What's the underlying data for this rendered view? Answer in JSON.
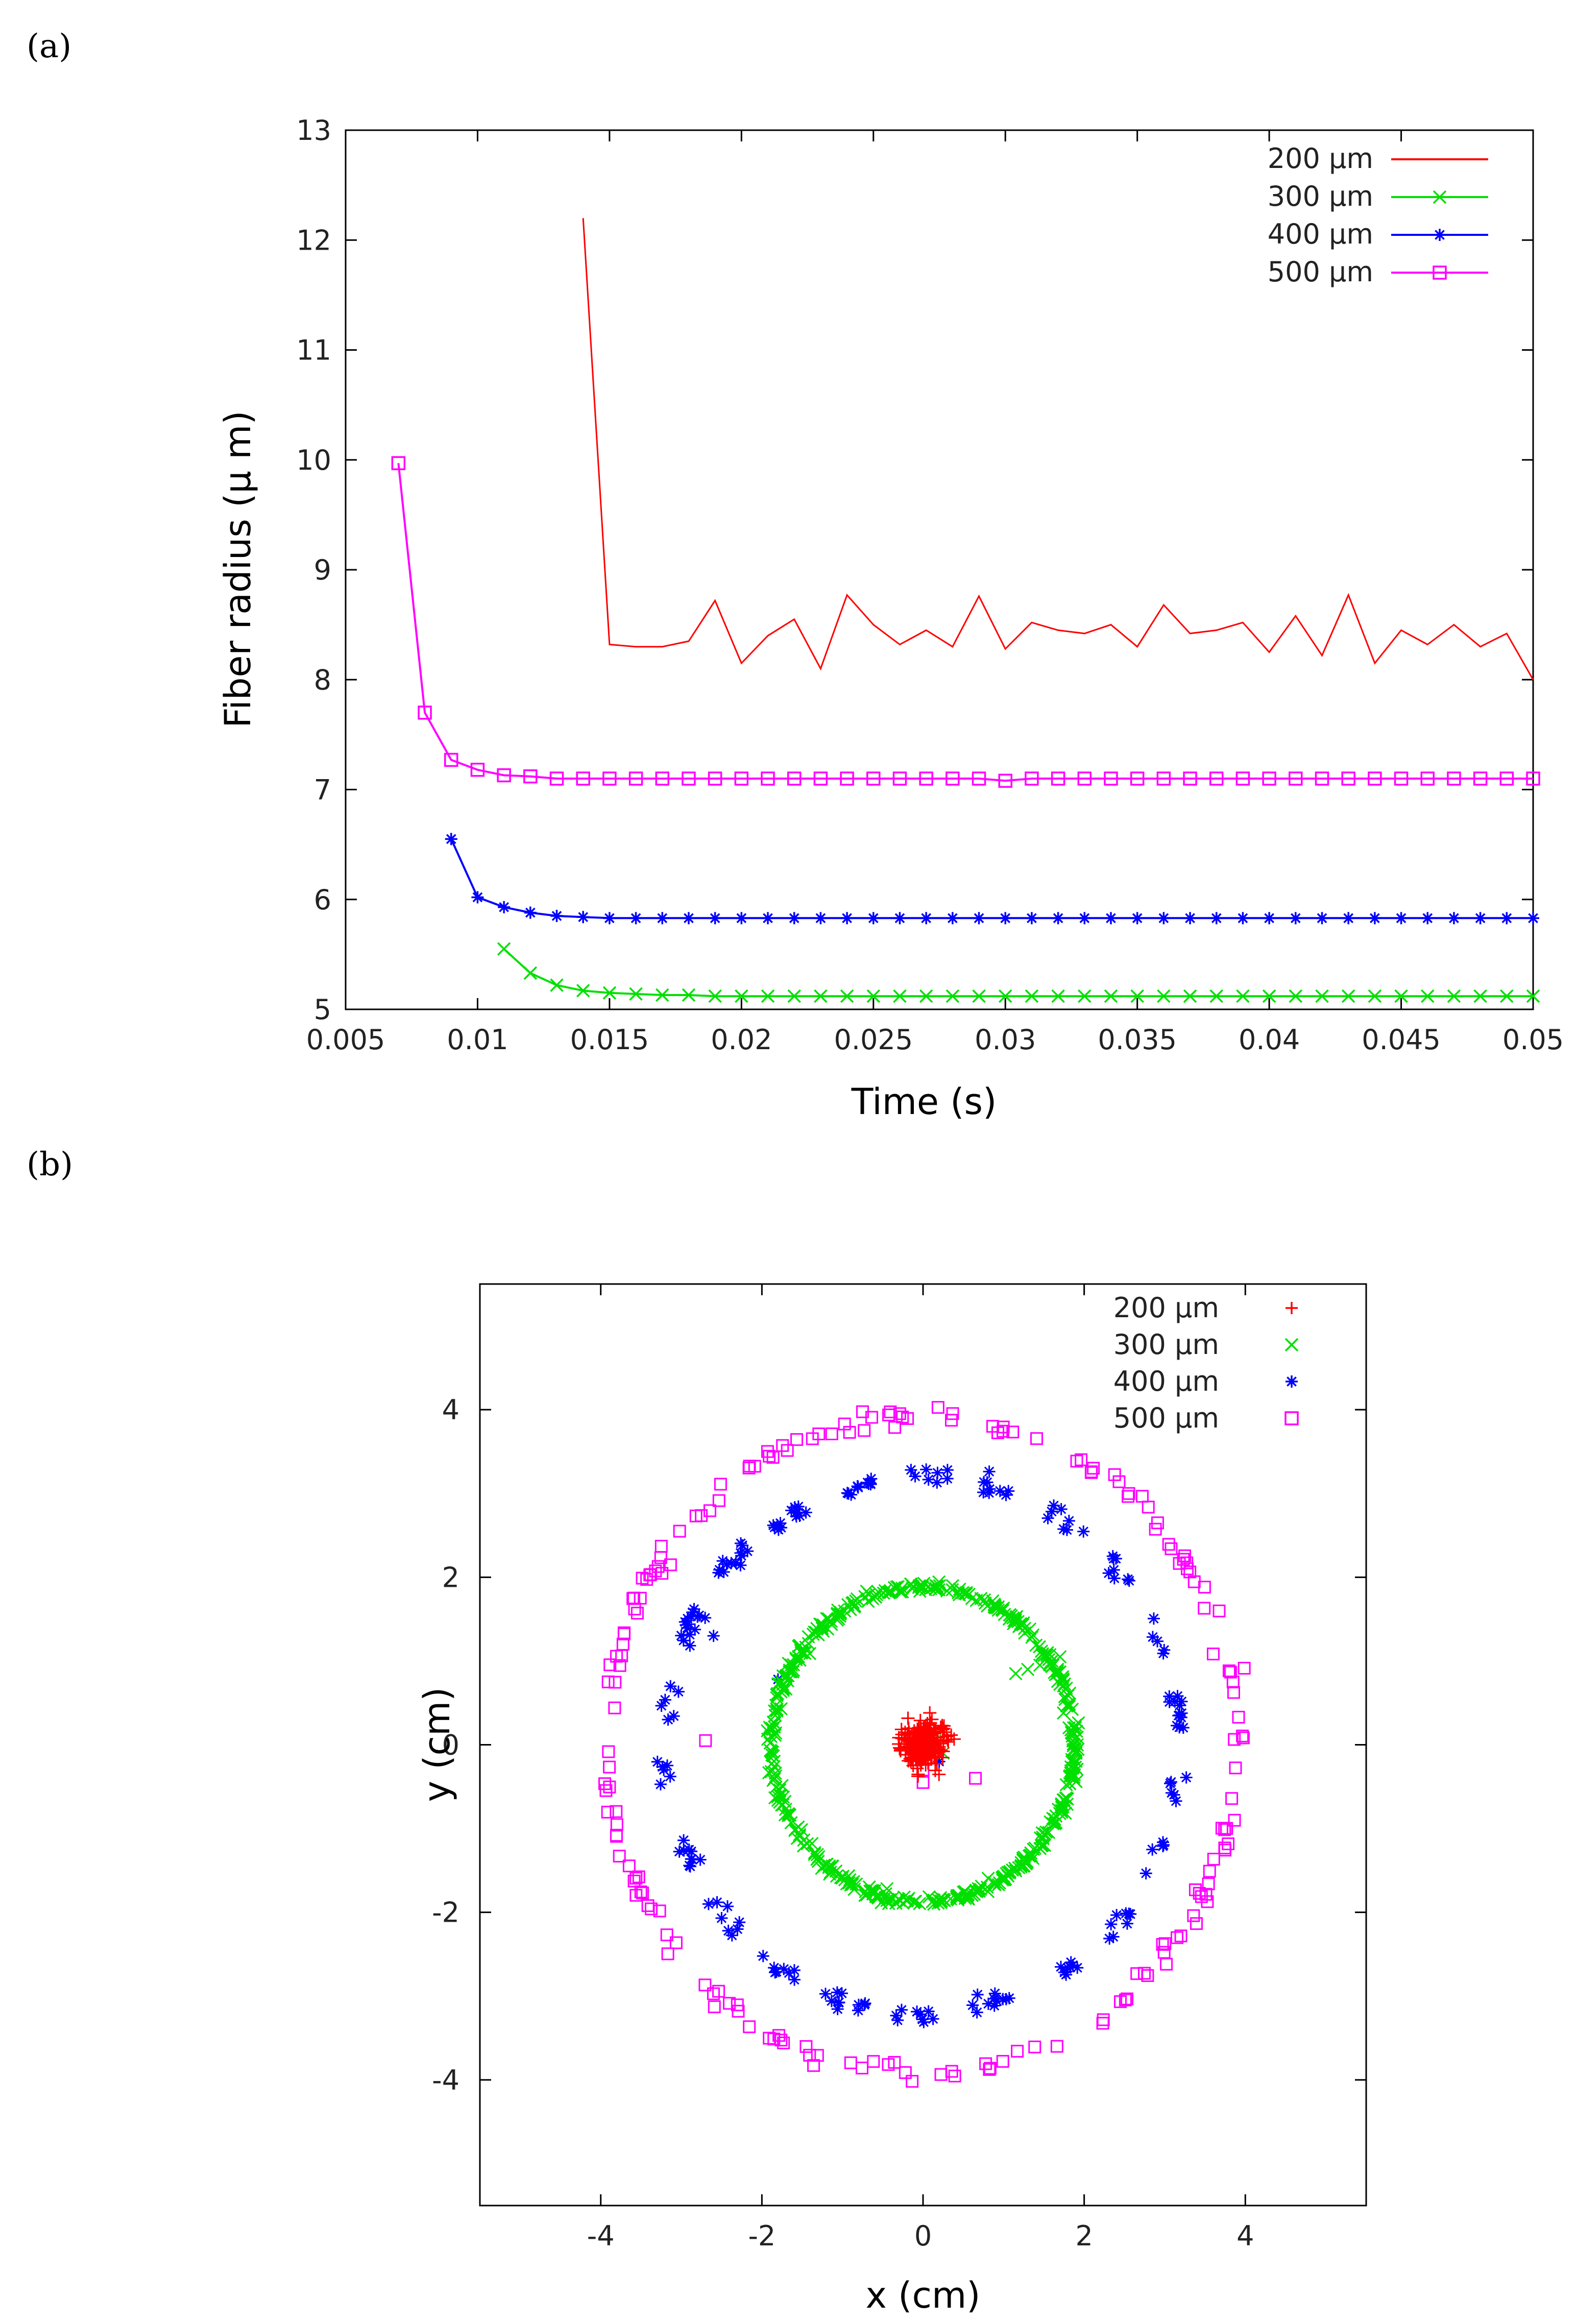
{
  "figure_labels": {
    "a": "(a)",
    "b": "(b)"
  },
  "colors": {
    "s200": "#ff0000",
    "s300": "#00e000",
    "s400": "#0000ff",
    "s500": "#ff00ff",
    "frame": "#000000"
  },
  "chart_data": [
    {
      "type": "line",
      "title": "",
      "xlabel": "Time (s)",
      "ylabel": "Fiber  radius (μ m)",
      "xlim": [
        0.005,
        0.05
      ],
      "ylim": [
        5,
        13
      ],
      "xticks": [
        "0.005",
        "0.01",
        "0.015",
        "0.02",
        "0.025",
        "0.03",
        "0.035",
        "0.04",
        "0.045",
        "0.05"
      ],
      "yticks": [
        "5",
        "6",
        "7",
        "8",
        "9",
        "10",
        "11",
        "12",
        "13"
      ],
      "legend_position": "top-right",
      "series": [
        {
          "name": "200 μm",
          "marker": "none",
          "x": [
            0.014,
            0.015,
            0.016,
            0.017,
            0.018,
            0.019,
            0.02,
            0.021,
            0.022,
            0.023,
            0.024,
            0.025,
            0.026,
            0.027,
            0.028,
            0.029,
            0.03,
            0.031,
            0.032,
            0.033,
            0.034,
            0.035,
            0.036,
            0.037,
            0.038,
            0.039,
            0.04,
            0.041,
            0.042,
            0.043,
            0.044,
            0.045,
            0.046,
            0.047,
            0.048,
            0.049,
            0.05
          ],
          "y": [
            12.2,
            8.32,
            8.3,
            8.3,
            8.35,
            8.72,
            8.15,
            8.4,
            8.55,
            8.1,
            8.77,
            8.5,
            8.32,
            8.45,
            8.3,
            8.76,
            8.28,
            8.52,
            8.45,
            8.42,
            8.5,
            8.3,
            8.68,
            8.42,
            8.45,
            8.52,
            8.25,
            8.58,
            8.22,
            8.77,
            8.15,
            8.45,
            8.32,
            8.5,
            8.3,
            8.42,
            8.0
          ]
        },
        {
          "name": "300 μm",
          "marker": "x",
          "x": [
            0.011,
            0.012,
            0.013,
            0.014,
            0.015,
            0.016,
            0.017,
            0.018,
            0.019,
            0.02,
            0.021,
            0.022,
            0.023,
            0.024,
            0.025,
            0.026,
            0.027,
            0.028,
            0.029,
            0.03,
            0.031,
            0.032,
            0.033,
            0.034,
            0.035,
            0.036,
            0.037,
            0.038,
            0.039,
            0.04,
            0.041,
            0.042,
            0.043,
            0.044,
            0.045,
            0.046,
            0.047,
            0.048,
            0.049,
            0.05
          ],
          "y": [
            5.55,
            5.33,
            5.22,
            5.17,
            5.15,
            5.14,
            5.13,
            5.13,
            5.12,
            5.12,
            5.12,
            5.12,
            5.12,
            5.12,
            5.12,
            5.12,
            5.12,
            5.12,
            5.12,
            5.12,
            5.12,
            5.12,
            5.12,
            5.12,
            5.12,
            5.12,
            5.12,
            5.12,
            5.12,
            5.12,
            5.12,
            5.12,
            5.12,
            5.12,
            5.12,
            5.12,
            5.12,
            5.12,
            5.12,
            5.12
          ]
        },
        {
          "name": "400 μm",
          "marker": "star",
          "x": [
            0.009,
            0.01,
            0.011,
            0.012,
            0.013,
            0.014,
            0.015,
            0.016,
            0.017,
            0.018,
            0.019,
            0.02,
            0.021,
            0.022,
            0.023,
            0.024,
            0.025,
            0.026,
            0.027,
            0.028,
            0.029,
            0.03,
            0.031,
            0.032,
            0.033,
            0.034,
            0.035,
            0.036,
            0.037,
            0.038,
            0.039,
            0.04,
            0.041,
            0.042,
            0.043,
            0.044,
            0.045,
            0.046,
            0.047,
            0.048,
            0.049,
            0.05
          ],
          "y": [
            6.55,
            6.02,
            5.93,
            5.88,
            5.85,
            5.84,
            5.83,
            5.83,
            5.83,
            5.83,
            5.83,
            5.83,
            5.83,
            5.83,
            5.83,
            5.83,
            5.83,
            5.83,
            5.83,
            5.83,
            5.83,
            5.83,
            5.83,
            5.83,
            5.83,
            5.83,
            5.83,
            5.83,
            5.83,
            5.83,
            5.83,
            5.83,
            5.83,
            5.83,
            5.83,
            5.83,
            5.83,
            5.83,
            5.83,
            5.83,
            5.83,
            5.83
          ]
        },
        {
          "name": "500 μm",
          "marker": "square",
          "x": [
            0.007,
            0.008,
            0.009,
            0.01,
            0.011,
            0.012,
            0.013,
            0.014,
            0.015,
            0.016,
            0.017,
            0.018,
            0.019,
            0.02,
            0.021,
            0.022,
            0.023,
            0.024,
            0.025,
            0.026,
            0.027,
            0.028,
            0.029,
            0.03,
            0.031,
            0.032,
            0.033,
            0.034,
            0.035,
            0.036,
            0.037,
            0.038,
            0.039,
            0.04,
            0.041,
            0.042,
            0.043,
            0.044,
            0.045,
            0.046,
            0.047,
            0.048,
            0.049,
            0.05
          ],
          "y": [
            9.97,
            7.7,
            7.27,
            7.18,
            7.13,
            7.12,
            7.1,
            7.1,
            7.1,
            7.1,
            7.1,
            7.1,
            7.1,
            7.1,
            7.1,
            7.1,
            7.1,
            7.1,
            7.1,
            7.1,
            7.1,
            7.1,
            7.1,
            7.08,
            7.1,
            7.1,
            7.1,
            7.1,
            7.1,
            7.1,
            7.1,
            7.1,
            7.1,
            7.1,
            7.1,
            7.1,
            7.1,
            7.1,
            7.1,
            7.1,
            7.1,
            7.1,
            7.1,
            7.1
          ]
        }
      ]
    },
    {
      "type": "scatter",
      "title": "",
      "xlabel": "x (cm)",
      "ylabel": "y (cm)",
      "xlim": [
        -5.5,
        5.5
      ],
      "ylim": [
        -5.5,
        5.5
      ],
      "xticks": [
        "-4",
        "-2",
        "0",
        "2",
        "4"
      ],
      "yticks": [
        "-4",
        "-2",
        "0",
        "2",
        "4"
      ],
      "legend_position": "top-right",
      "series": [
        {
          "name": "200 μm",
          "marker": "plus",
          "center": [
            0.0,
            0.0
          ],
          "radius": 0.0,
          "spread": 0.22,
          "count": 220
        },
        {
          "name": "300 μm",
          "marker": "x",
          "center": [
            0.0,
            0.0
          ],
          "radius": 1.88,
          "spread": 0.03,
          "count": 520,
          "extra_points": [
            [
              1.15,
              0.85
            ],
            [
              1.3,
              0.9
            ],
            [
              1.45,
              0.95
            ],
            [
              1.6,
              1.0
            ],
            [
              1.7,
              1.05
            ],
            [
              0.15,
              0.05
            ],
            [
              0.25,
              -0.1
            ]
          ]
        },
        {
          "name": "400 μm",
          "marker": "star",
          "center": [
            0.0,
            0.0
          ],
          "radius": 3.2,
          "spread": 0.06,
          "count": 200,
          "clusters": 22,
          "extra_points": [
            [
              -1.8,
              0.78
            ],
            [
              -2.6,
              1.3
            ],
            [
              0.1,
              -0.1
            ],
            [
              0.2,
              -0.2
            ]
          ]
        },
        {
          "name": "500 μm",
          "marker": "square",
          "center": [
            0.0,
            0.0
          ],
          "radius": 3.92,
          "spread": 0.06,
          "count": 190,
          "extra_points": [
            [
              -2.7,
              0.05
            ],
            [
              0.65,
              -0.4
            ],
            [
              0.0,
              -0.3
            ],
            [
              0.0,
              -0.45
            ]
          ]
        }
      ]
    }
  ]
}
